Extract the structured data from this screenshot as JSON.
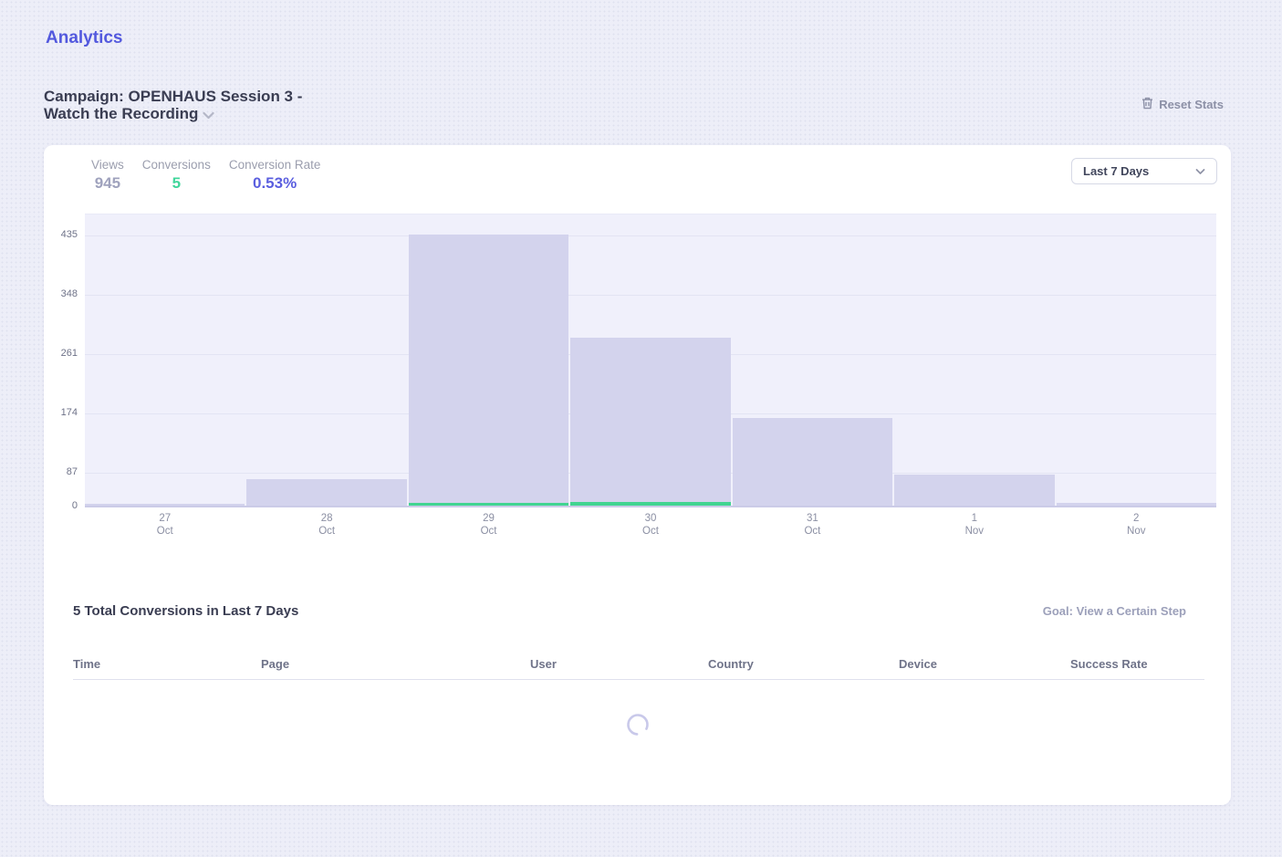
{
  "page": {
    "title": "Analytics",
    "campaign_label": "Campaign: OPENHAUS Session 3 - Watch the Recording",
    "reset_stats_label": "Reset Stats"
  },
  "stats": {
    "views": {
      "label": "Views",
      "value": "945"
    },
    "conversions": {
      "label": "Conversions",
      "value": "5"
    },
    "conversion_rate": {
      "label": "Conversion Rate",
      "value": "0.53%"
    }
  },
  "range_select": {
    "value": "Last 7 Days"
  },
  "chart_data": {
    "type": "bar",
    "title": "",
    "xlabel": "",
    "ylabel": "",
    "categories": [
      {
        "day": "27",
        "month": "Oct"
      },
      {
        "day": "28",
        "month": "Oct"
      },
      {
        "day": "29",
        "month": "Oct"
      },
      {
        "day": "30",
        "month": "Oct"
      },
      {
        "day": "31",
        "month": "Oct"
      },
      {
        "day": "1",
        "month": "Nov"
      },
      {
        "day": "2",
        "month": "Nov"
      }
    ],
    "series": [
      {
        "name": "Views",
        "color": "#d3d3ed",
        "values": [
          2,
          43,
          435,
          270,
          140,
          50,
          5
        ]
      },
      {
        "name": "Conversions",
        "color": "#41d491",
        "values": [
          0,
          0,
          2,
          3,
          0,
          0,
          0
        ]
      }
    ],
    "y_ticks": [
      435,
      348,
      261,
      174,
      87,
      0
    ],
    "ylim": [
      0,
      435
    ],
    "grid": true,
    "legend_position": "none"
  },
  "conversions_section": {
    "heading": "5 Total Conversions in Last 7 Days",
    "goal_label": "Goal: View a Certain Step",
    "table_headers": [
      "Time",
      "Page",
      "User",
      "Country",
      "Device",
      "Success Rate"
    ],
    "loading": true
  },
  "icons": {
    "reset": "trash-icon",
    "campaign": "chevron-down-icon",
    "select": "chevron-down-icon",
    "loading": "spinner-icon"
  },
  "colors": {
    "accent_indigo": "#5359de",
    "stat_green": "#40d69b",
    "bar_fill": "#d3d3ed",
    "conversion_green": "#41d491",
    "plot_background": "#f0f0fb",
    "page_background": "#edeef8",
    "card_background": "#ffffff"
  }
}
